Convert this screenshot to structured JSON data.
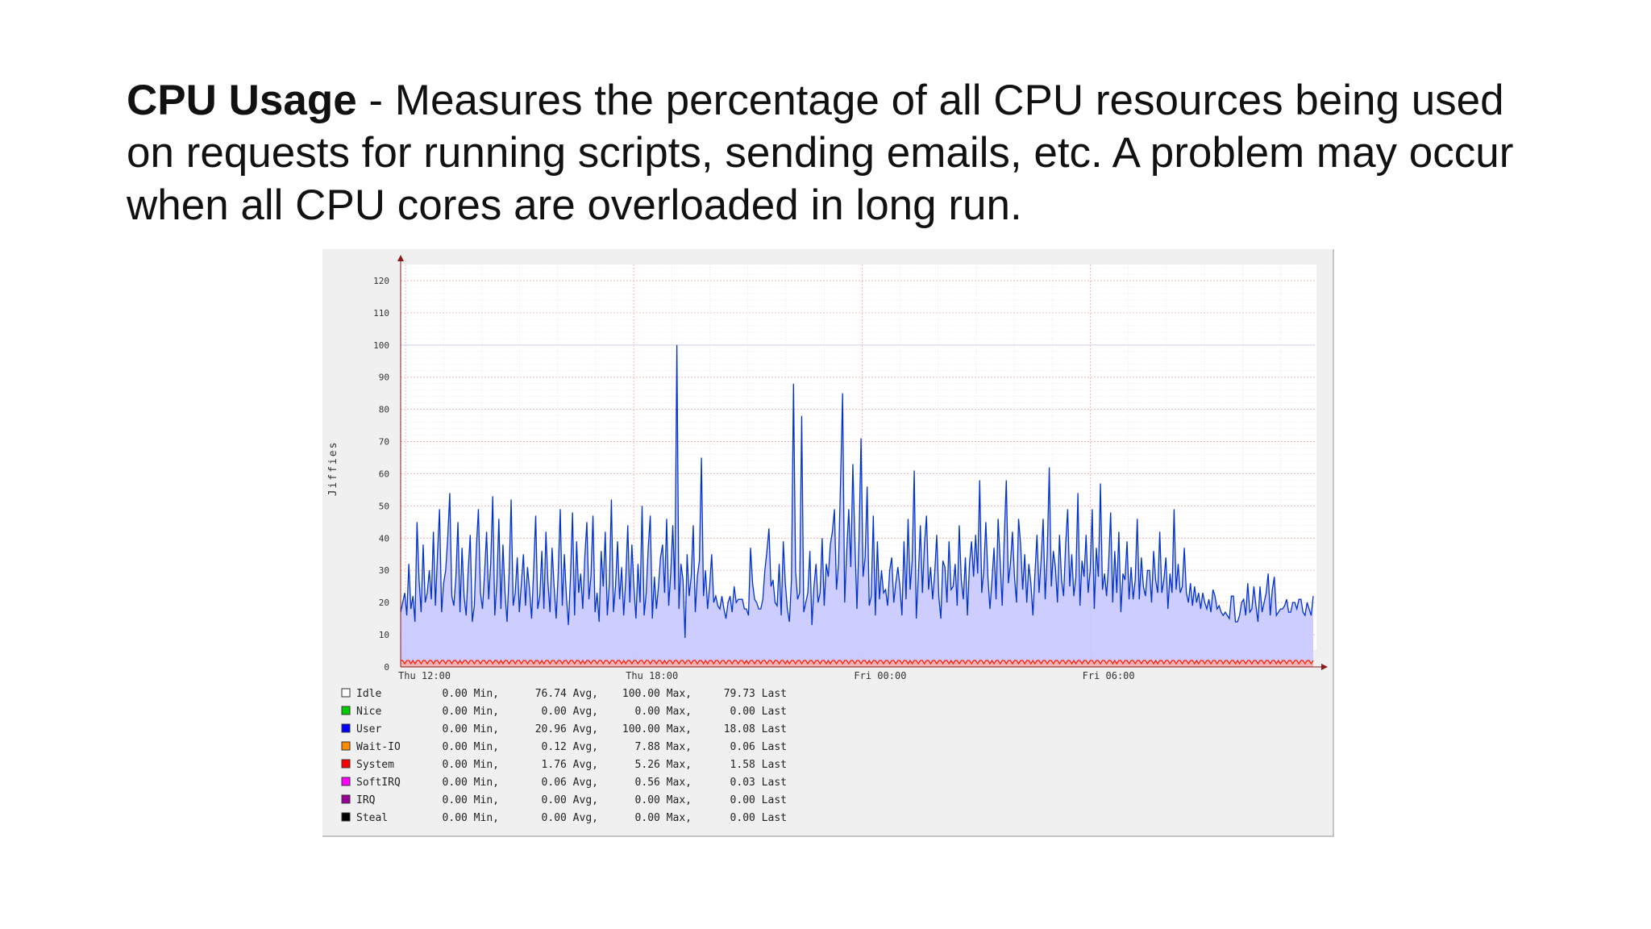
{
  "heading": {
    "term": "CPU Usage",
    "text": " - Measures the percentage of all CPU resources being used on requests for running scripts, sending emails, etc. A problem may occur when all CPU cores are overloaded in long run."
  },
  "colors": {
    "panel_background": "#f0f0f0",
    "plot_background": "#ffffff",
    "idle_area": "#c8c8ff",
    "user_line": "#0033cc",
    "system_line": "#ff2200",
    "major_grid": "#f2a8a8",
    "minor_grid": "#dedede",
    "axis_arrow": "#8b1a1a"
  },
  "chart_data": {
    "type": "area",
    "title": "",
    "xlabel": "",
    "ylabel": "Jiffies",
    "ylim": [
      0,
      125
    ],
    "yticks": [
      0,
      10,
      20,
      30,
      40,
      50,
      60,
      70,
      80,
      90,
      100,
      110,
      120
    ],
    "x_tick_labels": [
      "Thu 12:00",
      "Thu 18:00",
      "Fri 00:00",
      "Fri 06:00"
    ],
    "x_range": [
      "Thu 11:50",
      "Fri 12:00"
    ],
    "grid": true,
    "stacking": "stacked",
    "series": [
      {
        "name": "Idle",
        "color": "#ffffff",
        "note_values": "stacked on top of System + User, total approximately 100",
        "values": "complement"
      },
      {
        "name": "User",
        "color": "#0033cc",
        "values": [
          15,
          18,
          22,
          14,
          30,
          17,
          20,
          13,
          43,
          25,
          16,
          36,
          18,
          22,
          28,
          19,
          41,
          17,
          33,
          48,
          15,
          24,
          29,
          38,
          52,
          21,
          17,
          26,
          44,
          15,
          36,
          20,
          14,
          29,
          39,
          12,
          18,
          35,
          47,
          22,
          16,
          27,
          41,
          19,
          30,
          52,
          14,
          24,
          45,
          16,
          37,
          21,
          12,
          28,
          50,
          17,
          22,
          32,
          15,
          25,
          33,
          17,
          30,
          22,
          13,
          29,
          45,
          16,
          21,
          34,
          17,
          40,
          24,
          16,
          35,
          23,
          14,
          27,
          47,
          18,
          33,
          20,
          12,
          26,
          46,
          15,
          37,
          21,
          28,
          16,
          33,
          43,
          19,
          27,
          45,
          15,
          22,
          12,
          34,
          24,
          40,
          14,
          25,
          50,
          15,
          24,
          37,
          19,
          30,
          14,
          26,
          42,
          18,
          37,
          23,
          13,
          31,
          18,
          48,
          15,
          21,
          35,
          46,
          13,
          26,
          17,
          23,
          32,
          37,
          21,
          45,
          17,
          27,
          43,
          22,
          98,
          17,
          30,
          25,
          8,
          33,
          20,
          27,
          42,
          15,
          27,
          31,
          63,
          21,
          28,
          17,
          23,
          33,
          19,
          20,
          17,
          17,
          20,
          16,
          14,
          18,
          20,
          16,
          23,
          18,
          20,
          19,
          19,
          17,
          16,
          15,
          35,
          24,
          20,
          18,
          16,
          17,
          19,
          28,
          35,
          41,
          23,
          26,
          18,
          17,
          31,
          14,
          37,
          25,
          16,
          13,
          25,
          86,
          29,
          19,
          21,
          77,
          15,
          18,
          22,
          34,
          11,
          24,
          30,
          18,
          22,
          38,
          17,
          31,
          26,
          37,
          40,
          47,
          23,
          30,
          56,
          84,
          18,
          34,
          48,
          29,
          61,
          38,
          16,
          37,
          70,
          26,
          32,
          55,
          17,
          21,
          45,
          14,
          38,
          19,
          28,
          22,
          22,
          17,
          29,
          32,
          18,
          25,
          29,
          23,
          15,
          37,
          19,
          45,
          22,
          32,
          59,
          13,
          27,
          42,
          21,
          37,
          45,
          22,
          30,
          19,
          27,
          40,
          20,
          13,
          32,
          29,
          18,
          38,
          22,
          24,
          30,
          17,
          43,
          25,
          19,
          33,
          14,
          30,
          38,
          26,
          39,
          28,
          56,
          21,
          29,
          43,
          26,
          17,
          25,
          36,
          19,
          44,
          32,
          17,
          38,
          57,
          24,
          30,
          41,
          26,
          18,
          45,
          36,
          22,
          34,
          18,
          30,
          25,
          14,
          28,
          39,
          21,
          32,
          44,
          19,
          34,
          60,
          23,
          35,
          29,
          18,
          40,
          25,
          20,
          37,
          47,
          23,
          34,
          20,
          27,
          52,
          17,
          32,
          26,
          39,
          22,
          28,
          47,
          17,
          35,
          26,
          56,
          22,
          27,
          21,
          30,
          46,
          19,
          34,
          22,
          40,
          15,
          28,
          25,
          37,
          20,
          29,
          19,
          26,
          44,
          19,
          33,
          23,
          20,
          29,
          28,
          18,
          35,
          25,
          22,
          40,
          21,
          26,
          32,
          16,
          28,
          21,
          47,
          23,
          30,
          21,
          24,
          35,
          21,
          19,
          24,
          17,
          24,
          18,
          22,
          16,
          21,
          19,
          16,
          19,
          16,
          22,
          20,
          17,
          17,
          15,
          15,
          15,
          14,
          14,
          20,
          20,
          13,
          12,
          15,
          18,
          19,
          15,
          24,
          15,
          17,
          23,
          17,
          13,
          23,
          15,
          19,
          21,
          27,
          15,
          22,
          26,
          15,
          15,
          17,
          16,
          17,
          20,
          15,
          15,
          19,
          18,
          16,
          20,
          19,
          15,
          15,
          18,
          16,
          15,
          20
        ]
      },
      {
        "name": "System",
        "color": "#ff2200",
        "values": [
          2,
          2,
          1,
          2,
          2,
          1,
          2,
          1,
          2,
          2,
          1,
          2,
          2,
          1,
          2,
          2,
          1,
          2,
          2,
          1,
          2,
          2,
          1,
          2,
          2,
          1,
          2,
          2,
          1,
          2,
          1,
          2,
          2,
          1,
          2,
          2,
          1,
          2,
          2,
          1,
          2,
          2,
          1,
          2,
          2,
          1,
          2,
          2,
          1,
          2,
          1,
          2,
          2,
          1,
          2,
          2,
          1,
          2,
          2,
          1,
          2,
          2,
          1,
          2,
          2,
          1,
          2,
          2,
          1,
          2,
          1,
          2,
          2,
          1,
          2,
          2,
          1,
          2,
          2,
          1,
          2,
          2,
          1,
          2,
          2,
          1,
          2,
          2,
          1,
          2,
          1,
          2,
          2,
          1,
          2,
          2,
          1,
          2,
          2,
          1,
          2,
          2,
          1,
          2,
          2,
          1,
          2,
          2,
          1,
          2,
          1,
          2,
          2,
          1,
          2,
          2,
          1,
          2,
          2,
          1,
          2,
          2,
          1,
          2,
          2,
          1,
          2,
          2,
          1,
          2,
          1,
          2,
          2,
          1,
          2,
          2,
          1,
          2,
          2,
          1,
          2,
          2,
          1,
          2,
          2,
          1,
          2,
          2,
          1,
          2,
          1,
          2,
          2,
          1,
          2,
          2,
          1,
          2,
          2,
          1,
          2,
          2,
          1,
          2,
          2,
          1,
          2,
          2,
          1,
          2,
          1,
          2,
          2,
          1,
          2,
          2,
          1,
          2,
          2,
          1,
          2,
          2,
          1,
          2,
          2,
          1,
          2,
          2,
          1,
          2,
          1,
          2,
          2,
          1,
          2,
          2,
          1,
          2,
          2,
          1,
          2,
          2,
          1,
          2,
          2,
          1,
          2,
          2,
          1,
          2,
          1,
          2,
          2,
          1,
          2,
          2,
          1,
          2,
          2,
          1,
          2,
          2,
          1,
          2,
          2,
          1,
          2,
          2,
          1,
          2,
          1,
          2,
          2,
          1,
          2,
          2,
          1,
          2,
          2,
          1,
          2,
          2,
          1,
          2,
          2,
          1,
          2,
          2,
          1,
          2,
          1,
          2,
          2,
          1,
          2,
          2,
          1,
          2,
          2,
          1,
          2,
          2,
          1,
          2,
          2,
          1,
          2,
          2,
          1,
          2,
          1,
          2,
          2,
          1,
          2,
          2,
          1,
          2,
          2,
          1,
          2,
          2,
          1,
          2,
          2,
          1,
          2,
          2,
          1,
          2,
          1,
          2,
          2,
          1,
          2,
          2,
          1,
          2,
          2,
          1,
          2,
          2,
          1,
          2,
          2,
          1,
          2,
          2,
          1,
          2,
          1,
          2,
          2,
          1,
          2,
          2,
          1,
          2,
          2,
          1,
          2,
          2,
          1,
          2,
          2,
          1,
          2,
          2,
          1,
          2,
          1,
          2,
          2,
          1,
          2,
          2,
          1,
          2,
          2,
          1,
          2,
          2,
          1,
          2,
          2,
          1,
          2,
          2,
          1,
          2,
          1,
          2,
          2,
          1,
          2,
          2,
          1,
          2,
          2,
          1,
          2,
          2,
          1,
          2,
          2,
          1,
          2,
          2,
          1,
          2,
          1,
          2,
          2,
          1,
          2,
          2,
          1,
          2,
          2,
          1,
          2,
          2,
          1,
          2,
          2,
          1,
          2,
          2,
          1,
          2,
          1,
          2,
          2,
          1,
          2,
          2,
          1,
          2,
          2,
          1,
          2,
          2,
          1,
          2,
          2,
          1,
          2,
          2,
          1,
          2,
          1,
          2,
          2,
          1,
          2,
          2,
          1,
          2,
          2,
          1,
          2,
          2,
          1,
          2,
          2,
          1,
          2,
          2,
          1,
          2,
          1,
          2,
          2,
          1,
          2,
          2,
          1,
          2,
          2,
          1,
          2,
          2,
          1,
          2,
          2,
          1,
          2,
          2,
          1,
          2,
          1,
          2
        ]
      }
    ],
    "legend": [
      {
        "name": "Idle",
        "color": "#ffffff",
        "min": "0.00 Min,",
        "avg": "76.74 Avg,",
        "max": "100.00 Max,",
        "last": "79.73 Last"
      },
      {
        "name": "Nice",
        "color": "#00cc00",
        "min": "0.00 Min,",
        "avg": "0.00 Avg,",
        "max": "0.00 Max,",
        "last": "0.00 Last"
      },
      {
        "name": "User",
        "color": "#0000ff",
        "min": "0.00 Min,",
        "avg": "20.96 Avg,",
        "max": "100.00 Max,",
        "last": "18.08 Last"
      },
      {
        "name": "Wait-IO",
        "color": "#ff8c00",
        "min": "0.00 Min,",
        "avg": "0.12 Avg,",
        "max": "7.88 Max,",
        "last": "0.06 Last"
      },
      {
        "name": "System",
        "color": "#ff0000",
        "min": "0.00 Min,",
        "avg": "1.76 Avg,",
        "max": "5.26 Max,",
        "last": "1.58 Last"
      },
      {
        "name": "SoftIRQ",
        "color": "#ff00ff",
        "min": "0.00 Min,",
        "avg": "0.06 Avg,",
        "max": "0.56 Max,",
        "last": "0.03 Last"
      },
      {
        "name": "IRQ",
        "color": "#990099",
        "min": "0.00 Min,",
        "avg": "0.00 Avg,",
        "max": "0.00 Max,",
        "last": "0.00 Last"
      },
      {
        "name": "Steal",
        "color": "#000000",
        "min": "0.00 Min,",
        "avg": "0.00 Avg,",
        "max": "0.00 Max,",
        "last": "0.00 Last"
      }
    ]
  }
}
